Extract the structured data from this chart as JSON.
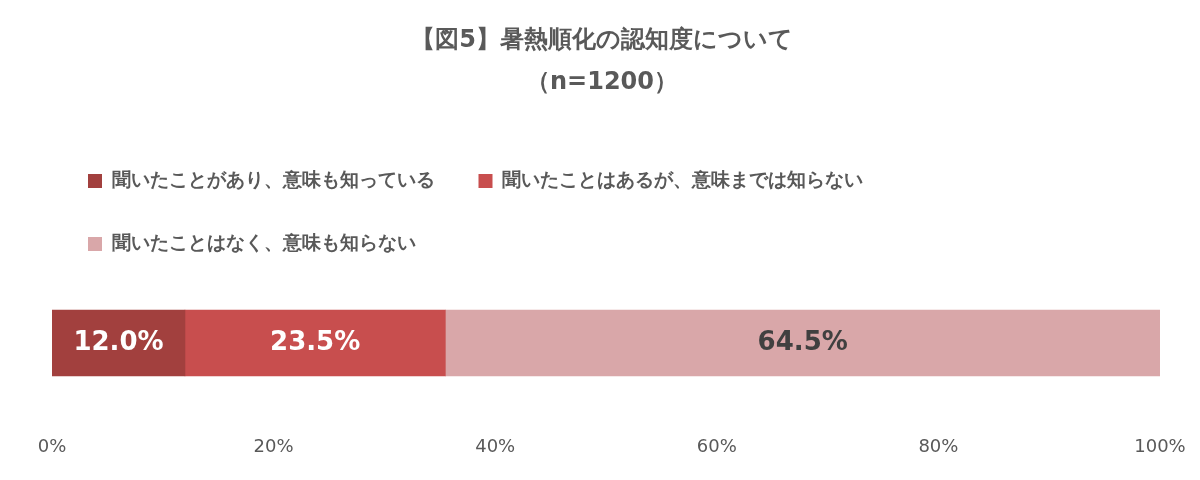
{
  "chart_data": {
    "type": "bar",
    "orientation": "horizontal",
    "stacked": true,
    "title": "【図5】暑熱順化の認知度について",
    "subtitle": "（n=1200）",
    "categories": [
      null
    ],
    "series": [
      {
        "name": "聞いたことがあり、意味も知っている",
        "color": "#a2403e",
        "values": [
          12.0
        ],
        "value_labels": [
          "12.0%"
        ]
      },
      {
        "name": "聞いたことはあるが、意味までは知らない",
        "color": "#c84e4e",
        "values": [
          23.5
        ],
        "value_labels": [
          "23.5%"
        ]
      },
      {
        "name": "聞いたことはなく、意味も知らない",
        "color": "#d9a7a9",
        "values": [
          64.5
        ],
        "value_labels": [
          "64.5%"
        ]
      }
    ],
    "xlim": [
      0,
      100
    ],
    "xticks": [
      {
        "value": 0,
        "label": "0%"
      },
      {
        "value": 20,
        "label": "20%"
      },
      {
        "value": 40,
        "label": "40%"
      },
      {
        "value": 60,
        "label": "60%"
      },
      {
        "value": 80,
        "label": "80%"
      },
      {
        "value": 100,
        "label": "100%"
      }
    ],
    "legend": "top",
    "grid": false
  }
}
